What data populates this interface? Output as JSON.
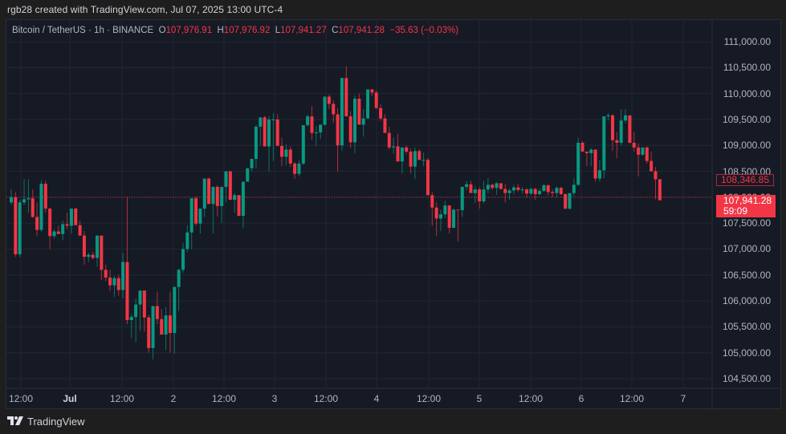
{
  "header": {
    "credit": "rgb28 created with TradingView.com, Jul 07, 2025 13:00 UTC-4"
  },
  "legend": {
    "symbol": "Bitcoin / TetherUS · 1h · BINANCE",
    "o_label": "O",
    "o_value": "107,976.91",
    "h_label": "H",
    "h_value": "107,976.92",
    "l_label": "L",
    "l_value": "107,941.27",
    "c_label": "C",
    "c_value": "107,941.28",
    "change": "−35.63 (−0.03%)"
  },
  "price_tags": {
    "reference": "108,346.85",
    "last_price": "107,941.28",
    "countdown": "59:09"
  },
  "footer": {
    "brand_logo": "17",
    "brand_name": "TradingView"
  },
  "colors": {
    "up": "#089981",
    "down": "#f23645",
    "background": "#161a25",
    "grid": "#232734",
    "text": "#b2b5be"
  },
  "chart_data": {
    "type": "candlestick",
    "title": "Bitcoin / TetherUS · 1h · BINANCE",
    "xlabel": "",
    "ylabel": "",
    "ylim": [
      104300,
      111300
    ],
    "y_ticks": [
      "111,000.00",
      "110,500.00",
      "110,000.00",
      "109,500.00",
      "109,000.00",
      "108,500.00",
      "108,000.00",
      "107,500.00",
      "107,000.00",
      "106,500.00",
      "106,000.00",
      "105,500.00",
      "105,000.00",
      "104,500.00"
    ],
    "y_tick_values": [
      111000,
      110500,
      110000,
      109500,
      109000,
      108500,
      108000,
      107500,
      107000,
      106500,
      106000,
      105500,
      105000,
      104500
    ],
    "x_ticks": [
      {
        "label": "12:00",
        "x": 26,
        "bold": false
      },
      {
        "label": "Jul",
        "x": 87,
        "bold": true
      },
      {
        "label": "12:00",
        "x": 152,
        "bold": false
      },
      {
        "label": "2",
        "x": 216,
        "bold": false
      },
      {
        "label": "12:00",
        "x": 279,
        "bold": false
      },
      {
        "label": "3",
        "x": 342,
        "bold": false
      },
      {
        "label": "12:00",
        "x": 406,
        "bold": false
      },
      {
        "label": "4",
        "x": 469,
        "bold": false
      },
      {
        "label": "12:00",
        "x": 534,
        "bold": false
      },
      {
        "label": "5",
        "x": 597,
        "bold": false
      },
      {
        "label": "12:00",
        "x": 661,
        "bold": false
      },
      {
        "label": "6",
        "x": 724,
        "bold": false
      },
      {
        "label": "12:00",
        "x": 787,
        "bold": false
      },
      {
        "label": "7",
        "x": 851,
        "bold": false
      }
    ],
    "grid": true,
    "reference_line": 108000,
    "last_price": 107941.28,
    "candles_start_x": 14,
    "candle_step": 5.35,
    "ohlc": [
      [
        107900,
        108150,
        107850,
        108000
      ],
      [
        108000,
        108100,
        106850,
        106900
      ],
      [
        106900,
        107950,
        106850,
        107900
      ],
      [
        107900,
        108350,
        107850,
        107960
      ],
      [
        107960,
        108350,
        107700,
        107980
      ],
      [
        107980,
        108150,
        107600,
        107620
      ],
      [
        107620,
        107900,
        107250,
        107370
      ],
      [
        107370,
        108330,
        107330,
        108260
      ],
      [
        108260,
        108320,
        107700,
        107780
      ],
      [
        107780,
        107800,
        107000,
        107250
      ],
      [
        107250,
        107380,
        107200,
        107340
      ],
      [
        107340,
        107450,
        107300,
        107290
      ],
      [
        107290,
        107550,
        107170,
        107480
      ],
      [
        107480,
        107700,
        107380,
        107450
      ],
      [
        107450,
        107780,
        107300,
        107780
      ],
      [
        107780,
        107800,
        107520,
        107460
      ],
      [
        107460,
        107550,
        107270,
        107260
      ],
      [
        107260,
        107350,
        106700,
        106850
      ],
      [
        106850,
        106930,
        106750,
        106890
      ],
      [
        106890,
        106950,
        106800,
        106830
      ],
      [
        106830,
        107260,
        106660,
        107260
      ],
      [
        107260,
        107260,
        106400,
        106600
      ],
      [
        106600,
        106700,
        106380,
        106450
      ],
      [
        106450,
        106600,
        106190,
        106300
      ],
      [
        106300,
        106480,
        106080,
        106440
      ],
      [
        106440,
        106500,
        106100,
        106210
      ],
      [
        106210,
        106930,
        106050,
        106750
      ],
      [
        106750,
        108000,
        105550,
        105630
      ],
      [
        105630,
        105740,
        105280,
        105690
      ],
      [
        105690,
        106040,
        105200,
        105930
      ],
      [
        105930,
        106130,
        105420,
        106200
      ],
      [
        106200,
        106200,
        105410,
        105680
      ],
      [
        105680,
        105730,
        105000,
        105090
      ],
      [
        105090,
        105900,
        104870,
        105900
      ],
      [
        105900,
        106180,
        105550,
        105650
      ],
      [
        105650,
        105840,
        105350,
        105350
      ],
      [
        105350,
        105880,
        105050,
        105720
      ],
      [
        105720,
        106180,
        105000,
        105380
      ],
      [
        105380,
        106220,
        104980,
        106270
      ],
      [
        106270,
        106620,
        105800,
        106600
      ],
      [
        106600,
        107120,
        106540,
        107000
      ],
      [
        107000,
        107460,
        106940,
        107320
      ],
      [
        107320,
        107560,
        107000,
        107980
      ],
      [
        107980,
        108020,
        107450,
        107490
      ],
      [
        107490,
        107650,
        107300,
        107780
      ],
      [
        107780,
        108360,
        107620,
        108360
      ],
      [
        108360,
        108380,
        107900,
        107870
      ],
      [
        107870,
        108180,
        107300,
        108200
      ],
      [
        108200,
        108230,
        107630,
        107830
      ],
      [
        107830,
        107970,
        107500,
        108200
      ],
      [
        108200,
        108500,
        107900,
        108500
      ],
      [
        108500,
        108500,
        107950,
        107950
      ],
      [
        107950,
        108080,
        107700,
        108040
      ],
      [
        108040,
        108040,
        107720,
        107640
      ],
      [
        107640,
        108000,
        107400,
        108300
      ],
      [
        108300,
        108340,
        108300,
        108560
      ],
      [
        108560,
        108700,
        108500,
        108740
      ],
      [
        108740,
        109400,
        108550,
        109360
      ],
      [
        109360,
        109460,
        109000,
        109540
      ],
      [
        109540,
        109570,
        109060,
        108980
      ],
      [
        108980,
        109560,
        108500,
        109500
      ],
      [
        109500,
        109620,
        108700,
        109500
      ],
      [
        109500,
        109600,
        109000,
        108990
      ],
      [
        108990,
        109150,
        108600,
        108780
      ],
      [
        108780,
        109020,
        108620,
        108920
      ],
      [
        108920,
        108980,
        108580,
        108650
      ],
      [
        108650,
        108680,
        108350,
        108450
      ],
      [
        108450,
        108720,
        108400,
        108650
      ],
      [
        108650,
        109390,
        108620,
        109390
      ],
      [
        109390,
        109600,
        109360,
        109560
      ],
      [
        109560,
        109760,
        109110,
        109240
      ],
      [
        109240,
        109370,
        108990,
        109250
      ],
      [
        109250,
        109370,
        109120,
        109400
      ],
      [
        109400,
        109940,
        109380,
        109940
      ],
      [
        109940,
        109980,
        109700,
        109800
      ],
      [
        109800,
        109870,
        109430,
        109600
      ],
      [
        109600,
        109720,
        108500,
        109000
      ],
      [
        109000,
        110300,
        108900,
        110300
      ],
      [
        110300,
        110530,
        109590,
        109560
      ],
      [
        109560,
        109660,
        108950,
        109060
      ],
      [
        109060,
        109960,
        108850,
        109900
      ],
      [
        109900,
        110000,
        109400,
        109400
      ],
      [
        109400,
        109700,
        109170,
        109520
      ],
      [
        109520,
        110080,
        109570,
        110080
      ],
      [
        110080,
        110040,
        109950,
        110020
      ],
      [
        110020,
        110060,
        109700,
        109720
      ],
      [
        109720,
        109800,
        109480,
        109520
      ],
      [
        109520,
        109600,
        109260,
        109240
      ],
      [
        109240,
        109360,
        108920,
        108960
      ],
      [
        108960,
        109150,
        108840,
        108980
      ],
      [
        108980,
        109220,
        108740,
        108690
      ],
      [
        108690,
        108950,
        108460,
        108960
      ],
      [
        108960,
        109000,
        108830,
        108880
      ],
      [
        108880,
        108940,
        108460,
        108590
      ],
      [
        108590,
        108960,
        108350,
        108890
      ],
      [
        108890,
        108930,
        108740,
        108720
      ],
      [
        108720,
        108860,
        108600,
        108720
      ],
      [
        108720,
        108760,
        108060,
        108040
      ],
      [
        108040,
        108100,
        107450,
        107800
      ],
      [
        107800,
        107900,
        107250,
        107590
      ],
      [
        107590,
        107760,
        107350,
        107670
      ],
      [
        107670,
        107930,
        107600,
        107840
      ],
      [
        107840,
        107850,
        107300,
        107410
      ],
      [
        107410,
        107780,
        107400,
        107760
      ],
      [
        107760,
        107730,
        107150,
        107750
      ],
      [
        107750,
        108200,
        107620,
        108200
      ],
      [
        108200,
        108320,
        108140,
        108250
      ],
      [
        108250,
        108320,
        108140,
        108080
      ],
      [
        108080,
        108220,
        107890,
        108150
      ],
      [
        108150,
        108200,
        107780,
        107920
      ],
      [
        107920,
        108320,
        107880,
        108150
      ],
      [
        108150,
        108370,
        108080,
        108240
      ],
      [
        108240,
        108260,
        108140,
        108180
      ],
      [
        108180,
        108290,
        108050,
        108270
      ],
      [
        108270,
        108260,
        108150,
        108160
      ],
      [
        108160,
        108260,
        107900,
        108080
      ],
      [
        108080,
        108170,
        107950,
        108130
      ],
      [
        108130,
        108240,
        108050,
        108190
      ],
      [
        108190,
        108260,
        108100,
        108140
      ],
      [
        108140,
        108200,
        108070,
        108150
      ],
      [
        108150,
        108180,
        108000,
        108070
      ],
      [
        108070,
        108180,
        108040,
        108160
      ],
      [
        108160,
        108180,
        107950,
        108060
      ],
      [
        108060,
        108170,
        108040,
        108120
      ],
      [
        108120,
        108260,
        108110,
        108230
      ],
      [
        108230,
        108250,
        108040,
        108100
      ],
      [
        108100,
        108150,
        108000,
        108080
      ],
      [
        108080,
        108210,
        108000,
        108180
      ],
      [
        108180,
        108200,
        108040,
        108060
      ],
      [
        108060,
        108070,
        107770,
        107780
      ],
      [
        107780,
        108050,
        107760,
        108080
      ],
      [
        108080,
        108360,
        108020,
        108240
      ],
      [
        108240,
        109150,
        108220,
        109050
      ],
      [
        109050,
        109080,
        108900,
        108880
      ],
      [
        108880,
        108880,
        108600,
        108850
      ],
      [
        108850,
        108950,
        108600,
        108920
      ],
      [
        108920,
        108900,
        108300,
        108360
      ],
      [
        108360,
        108710,
        108300,
        108520
      ],
      [
        108520,
        109380,
        108370,
        109560
      ],
      [
        109560,
        109620,
        109480,
        109580
      ],
      [
        109580,
        109600,
        108900,
        109100
      ],
      [
        109100,
        109260,
        108750,
        109050
      ],
      [
        109050,
        109700,
        109000,
        109480
      ],
      [
        109480,
        109700,
        109430,
        109580
      ],
      [
        109580,
        109500,
        109040,
        109050
      ],
      [
        109050,
        109260,
        108880,
        108960
      ],
      [
        108960,
        109040,
        108400,
        108820
      ],
      [
        108820,
        108950,
        108800,
        108960
      ],
      [
        108960,
        108980,
        108650,
        108700
      ],
      [
        108700,
        108880,
        108580,
        108500
      ],
      [
        108500,
        108580,
        107960,
        108347
      ],
      [
        108347,
        108350,
        107940,
        107941
      ]
    ]
  }
}
